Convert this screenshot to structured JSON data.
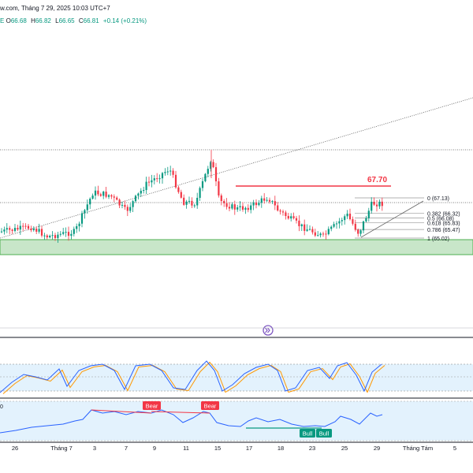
{
  "header": {
    "source_line": "w.com, Tháng 7 29, 2025 10:03 UTC+7",
    "ohlc_prefix": "E",
    "open_label": "O",
    "open": "66.68",
    "high_label": "H",
    "high": "66.82",
    "low_label": "L",
    "low": "66.65",
    "close_label": "C",
    "close": "66.81",
    "change": "+0.14 (+0.21%)"
  },
  "price_annotation": "67.70",
  "fibonacci_levels": [
    {
      "label": "0 (67.13)",
      "price": 67.13
    },
    {
      "label": "0.382 (66.32)",
      "price": 66.32
    },
    {
      "label": "0.5 (66.08)",
      "price": 66.08
    },
    {
      "label": "0.618 (65.83)",
      "price": 65.83
    },
    {
      "label": "0.786 (65.47)",
      "price": 65.47
    },
    {
      "label": "1 (65.02)",
      "price": 65.02
    }
  ],
  "rsi_labels": {
    "pane_label": "0",
    "bear_1": "Bear",
    "bear_2": "Bear",
    "bull_1": "Bull",
    "bull_2": "Bull"
  },
  "xaxis": {
    "ticks": [
      "26",
      "Tháng 7",
      "3",
      "7",
      "9",
      "11",
      "15",
      "17",
      "18",
      "23",
      "25",
      "29",
      "Tháng Tám",
      "5"
    ]
  },
  "colors": {
    "bull": "#089981",
    "bear": "#f23645",
    "support_zone": "#c8e6c9",
    "support_border": "#4caf50",
    "stoch_k": "#2962ff",
    "stoch_d": "#ff9800",
    "rsi": "#2962ff",
    "annotation": "#f23645"
  },
  "scroll_button_icon": "double-chevron-right-icon"
}
